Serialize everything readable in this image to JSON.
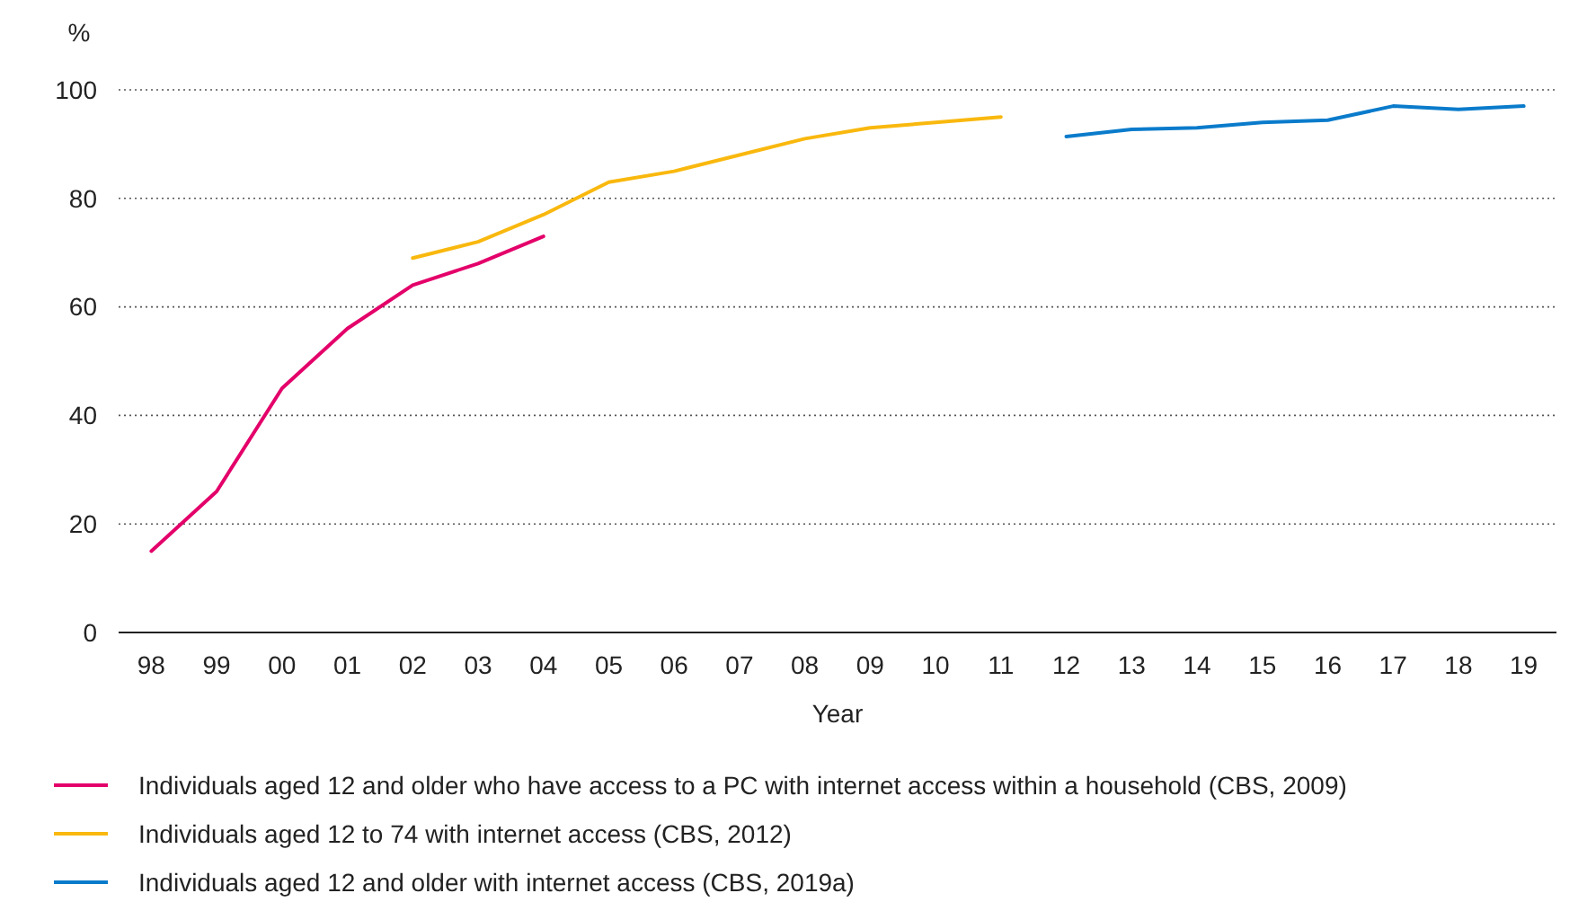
{
  "chart_data": {
    "type": "line",
    "ylabel": "%",
    "xlabel": "Year",
    "categories": [
      "98",
      "99",
      "00",
      "01",
      "02",
      "03",
      "04",
      "05",
      "06",
      "07",
      "08",
      "09",
      "10",
      "11",
      "12",
      "13",
      "14",
      "15",
      "16",
      "17",
      "18",
      "19"
    ],
    "ylim": [
      0,
      100
    ],
    "yticks": [
      0,
      20,
      40,
      60,
      80,
      100
    ],
    "grid": "y",
    "legend": "bottom",
    "marker": "none",
    "line_style": "solid",
    "series": [
      {
        "name": "Individuals aged 12 and older who have access to a PC with internet access within a household (CBS, 2009)",
        "color": "#e4006a",
        "values": [
          15,
          26,
          45,
          56,
          64,
          68,
          73,
          null,
          null,
          null,
          null,
          null,
          null,
          null,
          null,
          null,
          null,
          null,
          null,
          null,
          null,
          null
        ]
      },
      {
        "name": "Individuals aged 12 to 74 with internet access (CBS, 2012)",
        "color": "#f9b80e",
        "values": [
          null,
          null,
          null,
          null,
          69,
          72,
          77,
          83,
          85,
          88,
          91,
          93,
          94,
          95,
          null,
          null,
          null,
          null,
          null,
          null,
          null,
          null
        ]
      },
      {
        "name": "Individuals aged 12 and older with internet access (CBS, 2019a)",
        "color": "#0a7bcb",
        "values": [
          null,
          null,
          null,
          null,
          null,
          null,
          null,
          null,
          null,
          null,
          null,
          null,
          null,
          null,
          91.4,
          92.7,
          93,
          94,
          94.4,
          97,
          96.4,
          97
        ]
      }
    ]
  }
}
